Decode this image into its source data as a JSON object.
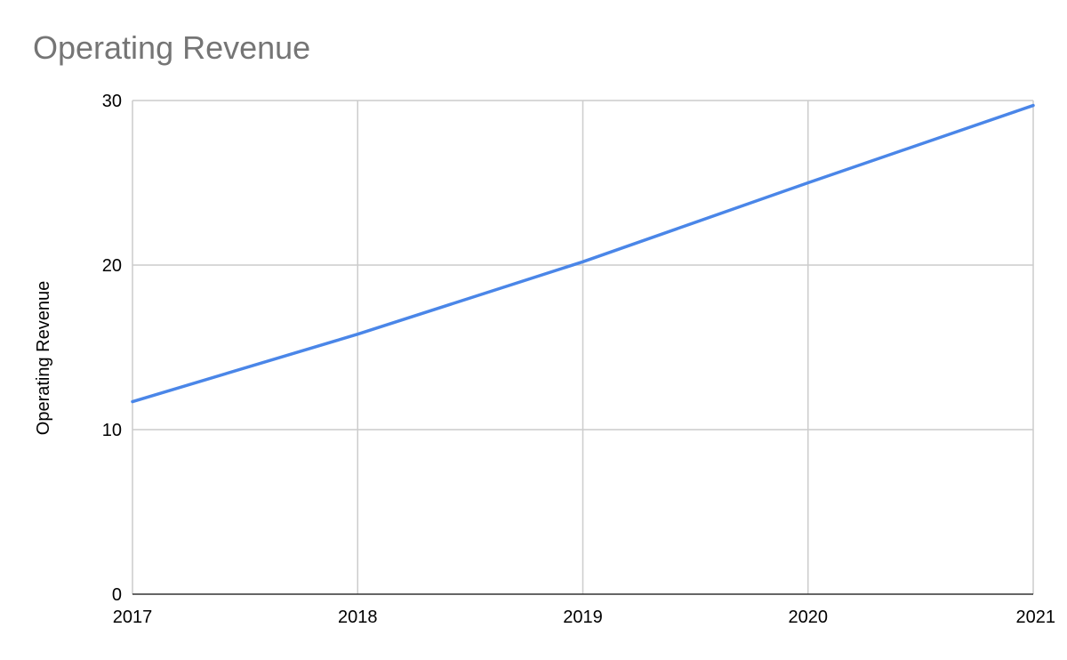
{
  "chart_data": {
    "type": "line",
    "title": "Operating Revenue",
    "xlabel": "",
    "ylabel": "Operating Revenue",
    "x": [
      "2017",
      "2018",
      "2019",
      "2020",
      "2021"
    ],
    "series": [
      {
        "values": [
          11.7,
          15.8,
          20.2,
          25.0,
          29.7
        ]
      }
    ],
    "ylim": [
      0,
      30
    ],
    "yticks": [
      "0",
      "10",
      "20",
      "30"
    ],
    "grid": true,
    "legend": "none",
    "colors": {
      "line": "#4a86e8",
      "grid": "#cccccc",
      "axis": "#333333",
      "title": "#757575"
    }
  }
}
